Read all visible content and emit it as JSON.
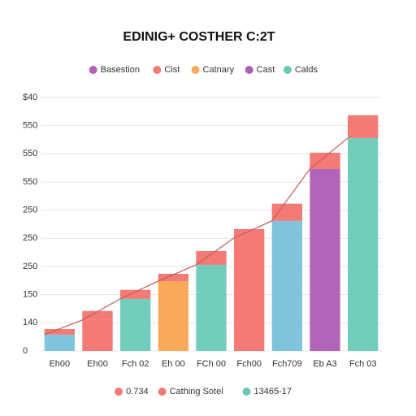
{
  "chart_data": {
    "type": "bar",
    "title": "EDINIG+ COSTHER C:2T",
    "categories": [
      "Eh00",
      "Eh00",
      "Fch 02",
      "Eh 00",
      "FCh 00",
      "Fch00",
      "Fch709",
      "Eb A3",
      "Fch 03"
    ],
    "series": [
      {
        "colors": [
          "#7ec4dc",
          "#f47a75",
          "#72cdbc",
          "#f8a95a",
          "#72cdbc",
          "#f47a75",
          "#7ec4dc",
          "#b064ba",
          "#72cdbc"
        ],
        "values": [
          5.8,
          11,
          18.5,
          24.8,
          30.6,
          40.1,
          46.2,
          64.6,
          75.6
        ]
      },
      {
        "color": "#f47a75",
        "values": [
          2.0,
          3.2,
          3.2,
          2.6,
          4.9,
          3.2,
          6.1,
          5.8,
          8.1
        ]
      }
    ],
    "line_color": "#c85a5a",
    "ylim": [
      0,
      90
    ],
    "yticks": [
      0,
      {
        "value": 10,
        "label": "140"
      },
      {
        "value": 20,
        "label": "150"
      },
      {
        "value": 30,
        "label": "250"
      },
      {
        "value": 40,
        "label": "250"
      },
      {
        "value": 50,
        "label": "250"
      },
      {
        "value": 60,
        "label": "550"
      },
      {
        "value": 70,
        "label": "550"
      },
      {
        "value": 80,
        "label": "550"
      },
      {
        "value": 90,
        "label": "$40"
      }
    ],
    "grid": true,
    "legend_top": [
      {
        "name": "Basestion",
        "color": "#b660b8"
      },
      {
        "name": "Cist",
        "color": "#f47a75"
      },
      {
        "name": "Catnary",
        "color": "#f8a95a"
      },
      {
        "name": "Cast",
        "color": "#a960b4"
      },
      {
        "name": "Calds",
        "color": "#6bc8b8"
      }
    ],
    "legend_bottom": [
      {
        "name": "0.734",
        "color": "#f47a75"
      },
      {
        "name": "Cathing Sotel",
        "color": "#f47a75"
      },
      {
        "name": "13465-17",
        "color": "#6bc8b8"
      }
    ]
  }
}
